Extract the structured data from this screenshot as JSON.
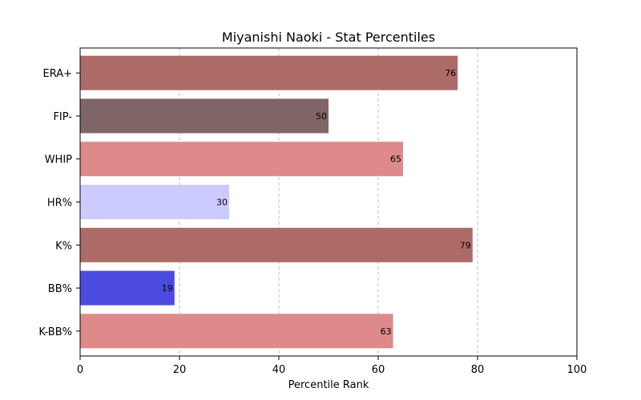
{
  "chart_data": {
    "type": "bar",
    "orientation": "horizontal",
    "title": "Miyanishi Naoki - Stat Percentiles",
    "xlabel": "Percentile Rank",
    "ylabel": "",
    "xlim": [
      0,
      100
    ],
    "xticks": [
      0,
      20,
      40,
      60,
      80,
      100
    ],
    "grid": "x-dashed",
    "categories": [
      "ERA+",
      "FIP-",
      "WHIP",
      "HR%",
      "K%",
      "BB%",
      "K-BB%"
    ],
    "values": [
      76,
      50,
      65,
      30,
      79,
      19,
      63
    ],
    "colors": [
      "#ad6b68",
      "#806566",
      "#de8a8a",
      "#cccbff",
      "#ad6b68",
      "#4b4be0",
      "#de8a8a"
    ]
  }
}
